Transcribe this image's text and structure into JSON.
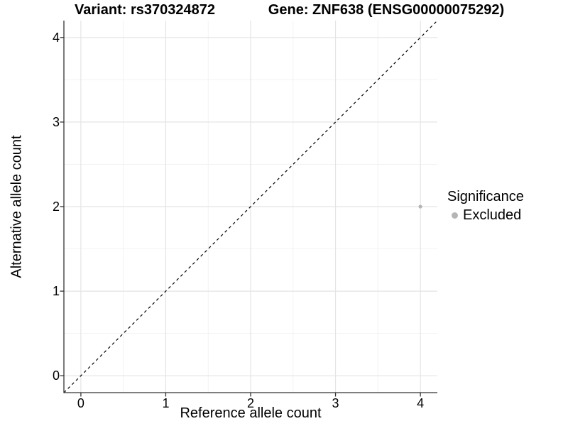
{
  "chart_data": {
    "type": "scatter",
    "title_left": "Variant: rs370324872",
    "title_right": "Gene: ZNF638 (ENSG00000075292)",
    "xlabel": "Reference allele count",
    "ylabel": "Alternative allele count",
    "xlim": [
      -0.2,
      4.2
    ],
    "ylim": [
      -0.2,
      4.2
    ],
    "xticks": [
      0,
      1,
      2,
      3,
      4
    ],
    "yticks": [
      0,
      1,
      2,
      3,
      4
    ],
    "xminor": [
      0.5,
      1.5,
      2.5,
      3.5
    ],
    "yminor": [
      0.5,
      1.5,
      2.5,
      3.5
    ],
    "grid": "on",
    "identity_line": {
      "equation": "y = x",
      "style": "dashed",
      "color": "#000000"
    },
    "series": [
      {
        "name": "Excluded",
        "color": "#b5b5b5",
        "points": [
          {
            "x": 4,
            "y": 2
          }
        ]
      }
    ],
    "legend": {
      "title": "Significance",
      "position": "right",
      "entries": [
        {
          "label": "Excluded",
          "color": "#b5b5b5"
        }
      ]
    }
  },
  "colors": {
    "background": "#ffffff",
    "grid_major": "#e4e4e4",
    "grid_minor": "#f2f2f2",
    "axis": "#333333",
    "text": "#000000"
  }
}
